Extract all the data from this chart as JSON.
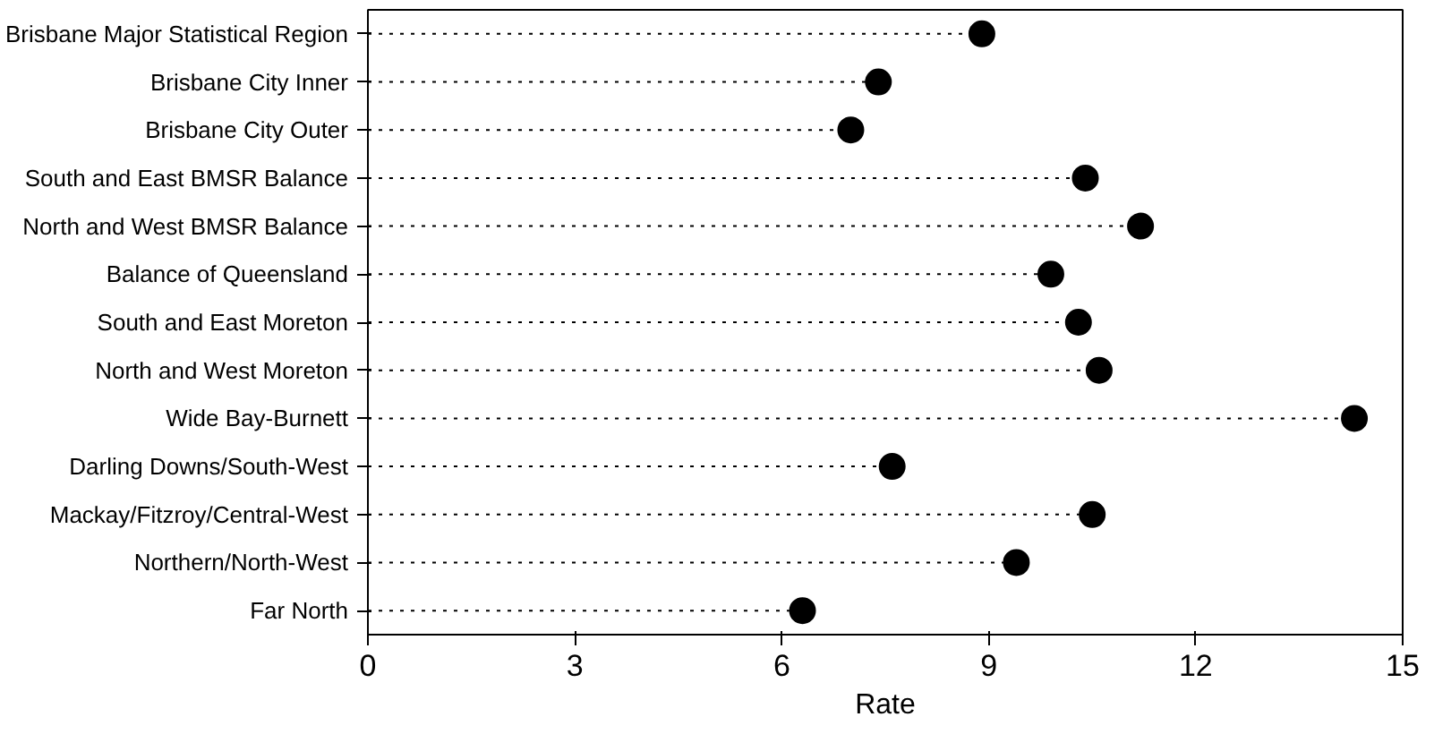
{
  "chart_data": {
    "type": "lollipop",
    "orientation": "horizontal",
    "xlabel": "Rate",
    "categories": [
      "Brisbane Major Statistical Region",
      "Brisbane City Inner",
      "Brisbane City Outer",
      "South and East BMSR Balance",
      "North and West BMSR Balance",
      "Balance of Queensland",
      "South and East Moreton",
      "North and West Moreton",
      "Wide Bay-Burnett",
      "Darling Downs/South-West",
      "Mackay/Fitzroy/Central-West",
      "Northern/North-West",
      "Far North"
    ],
    "values": [
      8.9,
      7.4,
      7.0,
      10.4,
      11.2,
      9.9,
      10.3,
      10.6,
      14.3,
      7.6,
      10.5,
      9.4,
      6.3
    ],
    "color": "#000000",
    "marker": "circle",
    "line_style": "dotted",
    "xlim": [
      0,
      15
    ],
    "xticks": [
      0,
      3,
      6,
      9,
      12,
      15
    ],
    "grid": false
  }
}
